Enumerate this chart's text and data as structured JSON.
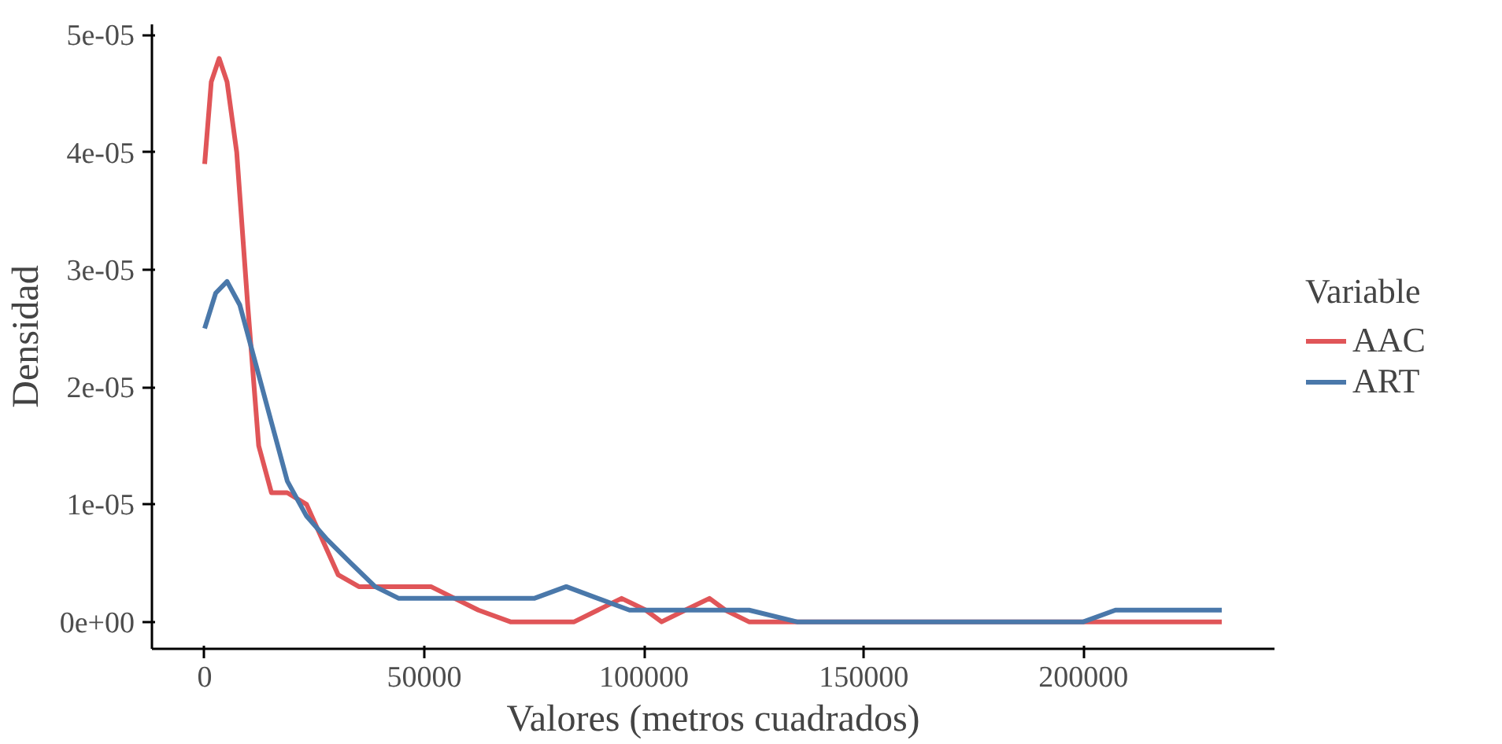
{
  "chart_data": {
    "type": "line",
    "xlabel": "Valores (metros cuadrados)",
    "ylabel": "Densidad",
    "legend_title": "Variable",
    "legend": "right",
    "grid": false,
    "xlim": [
      -12000,
      243500
    ],
    "ylim": [
      -2.3e-06,
      5.09e-05
    ],
    "xticks": [
      0,
      50000,
      100000,
      150000,
      200000
    ],
    "yticks": [
      {
        "value": 0,
        "label": "0e+00"
      },
      {
        "value": 1e-05,
        "label": "1e-05"
      },
      {
        "value": 2e-05,
        "label": "2e-05"
      },
      {
        "value": 3e-05,
        "label": "3e-05"
      },
      {
        "value": 4e-05,
        "label": "4e-05"
      },
      {
        "value": 5e-05,
        "label": "5e-05"
      }
    ],
    "series": [
      {
        "name": "AAC",
        "color": "#e05558",
        "x": [
          0,
          1500,
          3300,
          5100,
          7300,
          9800,
          12300,
          15200,
          18800,
          23200,
          26800,
          30400,
          35100,
          40600,
          46000,
          51500,
          56900,
          62300,
          69600,
          84100,
          89500,
          94900,
          100400,
          104000,
          109400,
          114900,
          118500,
          123900,
          131200,
          200000,
          231500
        ],
        "values": [
          3.9e-05,
          4.6e-05,
          4.8e-05,
          4.6e-05,
          4e-05,
          2.7e-05,
          1.5e-05,
          1.1e-05,
          1.1e-05,
          1e-05,
          7e-06,
          4e-06,
          3e-06,
          3e-06,
          3e-06,
          3e-06,
          2e-06,
          1e-06,
          0,
          0,
          1e-06,
          2e-06,
          1e-06,
          0,
          1e-06,
          2e-06,
          1e-06,
          0,
          0,
          0,
          0
        ]
      },
      {
        "name": "ART",
        "color": "#4a78aa",
        "x": [
          0,
          2500,
          5100,
          8000,
          11600,
          15200,
          18800,
          23200,
          27900,
          33300,
          38800,
          44200,
          51500,
          58700,
          65900,
          75000,
          82300,
          89500,
          96700,
          102200,
          109400,
          116700,
          123900,
          134800,
          142000,
          185500,
          192800,
          200000,
          207300,
          212700,
          221700,
          231500
        ],
        "values": [
          2.5e-05,
          2.8e-05,
          2.9e-05,
          2.7e-05,
          2.2e-05,
          1.7e-05,
          1.2e-05,
          9e-06,
          7e-06,
          5e-06,
          3e-06,
          2e-06,
          2e-06,
          2e-06,
          2e-06,
          2e-06,
          3e-06,
          2e-06,
          1e-06,
          1e-06,
          1e-06,
          1e-06,
          1e-06,
          0,
          0,
          0,
          0,
          0,
          1e-06,
          1e-06,
          1e-06,
          1e-06
        ]
      }
    ]
  }
}
